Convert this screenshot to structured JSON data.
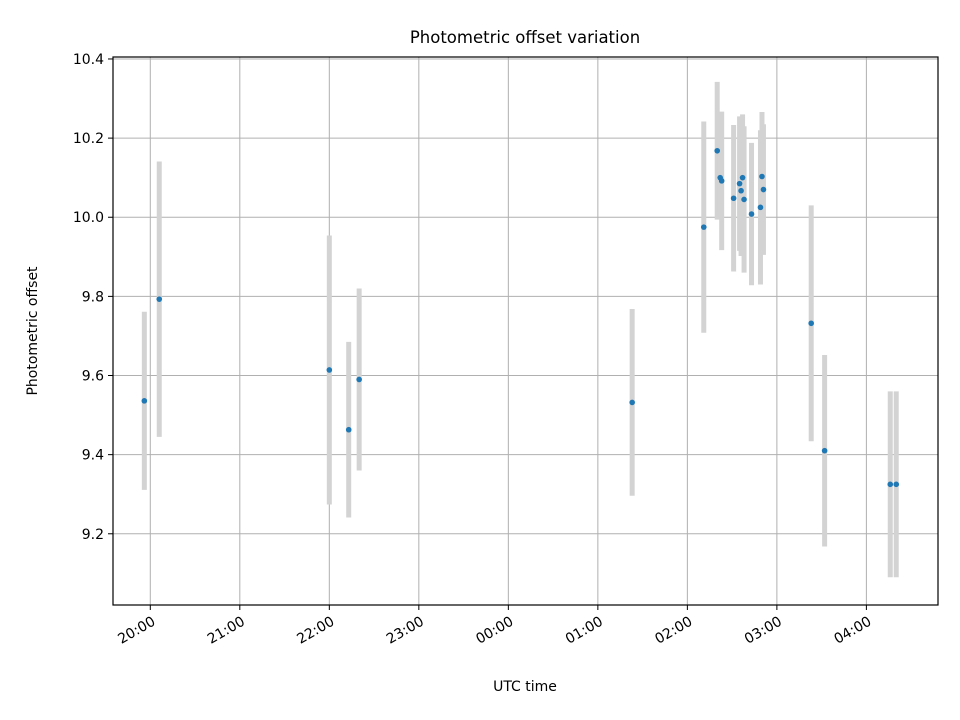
{
  "chart_data": {
    "type": "scatter",
    "title": "Photometric offset variation",
    "xlabel": "UTC time",
    "ylabel": "Photometric offset",
    "xlim": [
      "19:35",
      "04:48"
    ],
    "ylim": [
      9.02,
      10.405
    ],
    "x_ticks": [
      "20:00",
      "21:00",
      "22:00",
      "23:00",
      "00:00",
      "01:00",
      "02:00",
      "03:00",
      "04:00"
    ],
    "y_ticks": [
      9.2,
      9.4,
      9.6,
      9.8,
      10.0,
      10.2,
      10.4
    ],
    "y_tick_labels": [
      "9.2",
      "9.4",
      "9.6",
      "9.8",
      "10.0",
      "10.2",
      "10.4"
    ],
    "grid": true,
    "point_color": "#1f77b4",
    "errorbar_color": "#d3d3d3",
    "points": [
      {
        "t": "19:56",
        "y": 9.536,
        "err": 0.225
      },
      {
        "t": "20:06",
        "y": 9.793,
        "err": 0.348
      },
      {
        "t": "22:00",
        "y": 9.614,
        "err": 0.34
      },
      {
        "t": "22:13",
        "y": 9.463,
        "err": 0.222
      },
      {
        "t": "22:20",
        "y": 9.59,
        "err": 0.23
      },
      {
        "t": "01:23",
        "y": 9.532,
        "err": 0.236
      },
      {
        "t": "02:11",
        "y": 9.975,
        "err": 0.267
      },
      {
        "t": "02:20",
        "y": 10.168,
        "err": 0.174
      },
      {
        "t": "02:22",
        "y": 10.1,
        "err": 0.085
      },
      {
        "t": "02:23",
        "y": 10.092,
        "err": 0.175
      },
      {
        "t": "02:31",
        "y": 10.048,
        "err": 0.185
      },
      {
        "t": "02:35",
        "y": 10.085,
        "err": 0.17
      },
      {
        "t": "02:36",
        "y": 10.067,
        "err": 0.165
      },
      {
        "t": "02:37",
        "y": 10.1,
        "err": 0.16
      },
      {
        "t": "02:38",
        "y": 10.045,
        "err": 0.185
      },
      {
        "t": "02:43",
        "y": 10.008,
        "err": 0.18
      },
      {
        "t": "02:49",
        "y": 10.025,
        "err": 0.195
      },
      {
        "t": "02:50",
        "y": 10.103,
        "err": 0.163
      },
      {
        "t": "02:51",
        "y": 10.07,
        "err": 0.165
      },
      {
        "t": "03:23",
        "y": 9.732,
        "err": 0.298
      },
      {
        "t": "03:32",
        "y": 9.41,
        "err": 0.242
      },
      {
        "t": "04:16",
        "y": 9.325,
        "err": 0.235
      },
      {
        "t": "04:20",
        "y": 9.325,
        "err": 0.235
      }
    ]
  }
}
